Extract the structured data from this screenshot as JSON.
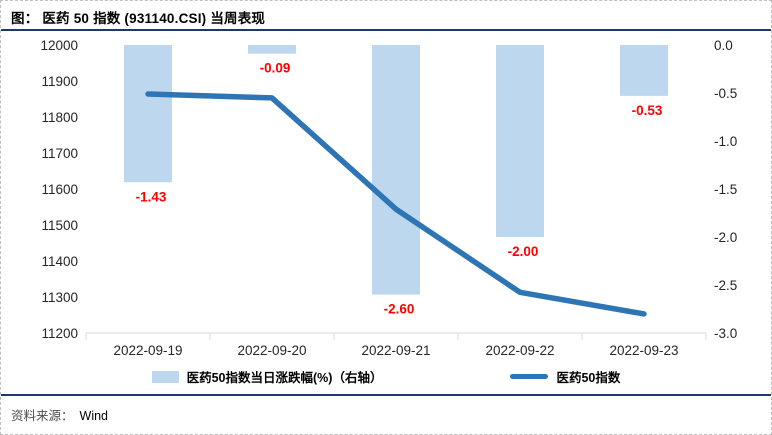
{
  "header": {
    "title": "图：  医药 50 指数  (931140.CSI)  当周表现"
  },
  "footer": {
    "source_label": "资料来源：",
    "source_value": "Wind"
  },
  "chart_data": {
    "type": "combo",
    "title": "医药 50 指数 (931140.CSI) 当周表现",
    "categories": [
      "2022-09-19",
      "2022-09-20",
      "2022-09-21",
      "2022-09-22",
      "2022-09-23"
    ],
    "series": [
      {
        "name": "医药50指数当日涨跌幅(%)（右轴）",
        "type": "bar",
        "axis": "right",
        "values": [
          -1.43,
          -0.09,
          -2.6,
          -2.0,
          -0.53
        ],
        "labels": [
          "-1.43",
          "-0.09",
          "-2.60",
          "-2.00",
          "-0.53"
        ],
        "color": "#BDD7EE",
        "label_color": "#FF0000"
      },
      {
        "name": "医药50指数",
        "type": "line",
        "axis": "left",
        "values": [
          11864,
          11853,
          11544,
          11313,
          11253
        ],
        "color": "#2E75B6"
      }
    ],
    "left_axis": {
      "min": 11200,
      "max": 12000,
      "step": 100,
      "ticks": [
        "12000",
        "11900",
        "11800",
        "11700",
        "11600",
        "11500",
        "11400",
        "11300",
        "11200"
      ]
    },
    "right_axis": {
      "min": -3.0,
      "max": 0.0,
      "step": 0.5,
      "ticks": [
        "0.0",
        "-0.5",
        "-1.0",
        "-1.5",
        "-2.0",
        "-2.5",
        "-3.0"
      ]
    },
    "grid": false,
    "legend_position": "bottom",
    "axis_text_color": "#262626",
    "axis_line_color": "#d9d9d9"
  }
}
